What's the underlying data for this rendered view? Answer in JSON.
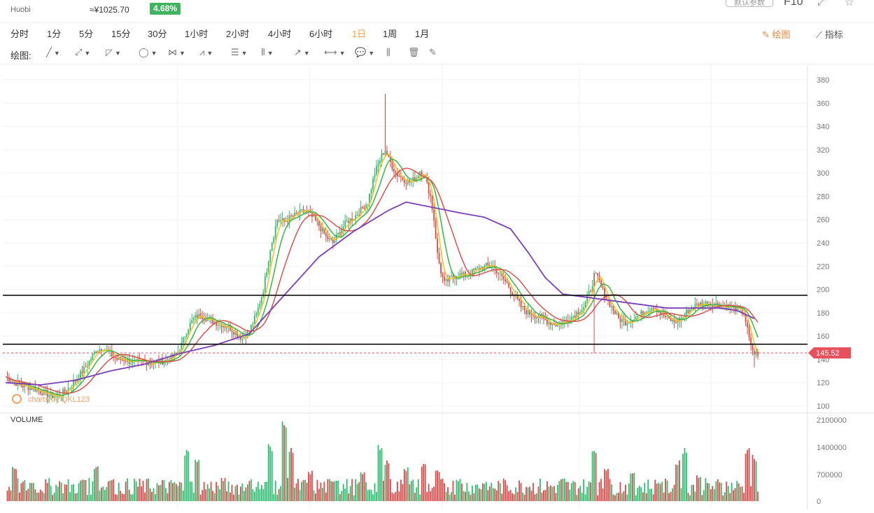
{
  "header": {
    "exchange": "Huobi",
    "price_cny": "≈¥1025.70",
    "change_pct": "4.68%",
    "param_button": "默认参数",
    "f10_label": "F10"
  },
  "timeframes": [
    "分时",
    "1分",
    "5分",
    "15分",
    "30分",
    "1小时",
    "2小时",
    "4小时",
    "6小时",
    "1日",
    "1周",
    "1月"
  ],
  "active_timeframe": "1日",
  "right_buttons": {
    "draw": "绘图",
    "indicator": "指标"
  },
  "draw_tools": {
    "label": "绘图:",
    "tools": [
      {
        "name": "line-tool",
        "glyph": "╱",
        "caret": true
      },
      {
        "name": "ray-tool",
        "glyph": "⤢",
        "caret": true
      },
      {
        "name": "channel-tool",
        "glyph": "◸",
        "caret": true
      },
      {
        "name": "shape-tool",
        "glyph": "◯",
        "caret": true
      },
      {
        "name": "pattern-tool",
        "glyph": "⋈",
        "caret": true
      },
      {
        "name": "wave-tool",
        "glyph": "⩘",
        "caret": true
      },
      {
        "name": "fib-tool",
        "glyph": "☰",
        "caret": true
      },
      {
        "name": "gann-tool",
        "glyph": "⦀",
        "caret": true
      },
      {
        "name": "arrow-tool",
        "glyph": "↗",
        "caret": true
      },
      {
        "name": "measure-tool",
        "glyph": "⟷",
        "caret": true
      },
      {
        "name": "comment-tool",
        "glyph": "💬",
        "caret": true
      },
      {
        "name": "candle-tool",
        "glyph": "⫼",
        "caret": false
      },
      {
        "name": "trash-tool",
        "glyph": "🗑",
        "caret": false
      },
      {
        "name": "brush-tool",
        "glyph": "✎",
        "caret": false
      }
    ]
  },
  "chart_data": {
    "type": "candlestick",
    "price_axis": {
      "ticks": [
        380,
        360,
        340,
        320,
        300,
        280,
        260,
        240,
        220,
        200,
        180,
        160,
        140,
        120,
        100
      ]
    },
    "volume_axis": {
      "label": "VOLUME",
      "ticks": [
        "2100000",
        "1400000",
        "700000",
        "0"
      ]
    },
    "last_price": "145.52",
    "horizontal_lines": [
      195,
      153
    ],
    "watermark": "charts by QKL123",
    "colors": {
      "up": "#2dbd6e",
      "down": "#e04848",
      "ma5": "#f2c21b",
      "ma10": "#3ab54a",
      "ma20": "#d9534f",
      "ma60": "#7b3fb8",
      "last_price": "#e8505b"
    },
    "close_path": [
      [
        0,
        125
      ],
      [
        8,
        118
      ],
      [
        16,
        115
      ],
      [
        24,
        110
      ],
      [
        30,
        108
      ],
      [
        36,
        115
      ],
      [
        42,
        125
      ],
      [
        48,
        138
      ],
      [
        52,
        148
      ],
      [
        56,
        150
      ],
      [
        60,
        145
      ],
      [
        64,
        140
      ],
      [
        68,
        140
      ],
      [
        72,
        138
      ],
      [
        76,
        137
      ],
      [
        80,
        138
      ],
      [
        84,
        137
      ],
      [
        88,
        138
      ],
      [
        92,
        139
      ],
      [
        96,
        142
      ],
      [
        100,
        148
      ],
      [
        104,
        165
      ],
      [
        108,
        175
      ],
      [
        112,
        178
      ],
      [
        116,
        175
      ],
      [
        120,
        172
      ],
      [
        124,
        170
      ],
      [
        128,
        168
      ],
      [
        132,
        163
      ],
      [
        136,
        158
      ],
      [
        140,
        165
      ],
      [
        144,
        178
      ],
      [
        148,
        200
      ],
      [
        152,
        235
      ],
      [
        156,
        260
      ],
      [
        160,
        258
      ],
      [
        164,
        262
      ],
      [
        168,
        265
      ],
      [
        172,
        268
      ],
      [
        176,
        262
      ],
      [
        180,
        255
      ],
      [
        184,
        245
      ],
      [
        188,
        240
      ],
      [
        192,
        250
      ],
      [
        196,
        258
      ],
      [
        200,
        262
      ],
      [
        204,
        268
      ],
      [
        208,
        275
      ],
      [
        212,
        300
      ],
      [
        216,
        315
      ],
      [
        218,
        320
      ],
      [
        220,
        312
      ],
      [
        224,
        300
      ],
      [
        228,
        295
      ],
      [
        232,
        292
      ],
      [
        236,
        296
      ],
      [
        238,
        302
      ],
      [
        240,
        300
      ],
      [
        244,
        280
      ],
      [
        246,
        260
      ],
      [
        248,
        230
      ],
      [
        250,
        215
      ],
      [
        252,
        205
      ],
      [
        256,
        210
      ],
      [
        260,
        213
      ],
      [
        264,
        212
      ],
      [
        268,
        215
      ],
      [
        272,
        218
      ],
      [
        276,
        220
      ],
      [
        280,
        220
      ],
      [
        284,
        212
      ],
      [
        288,
        205
      ],
      [
        292,
        195
      ],
      [
        296,
        185
      ],
      [
        300,
        180
      ],
      [
        304,
        178
      ],
      [
        308,
        175
      ],
      [
        312,
        172
      ],
      [
        316,
        170
      ],
      [
        320,
        172
      ],
      [
        324,
        175
      ],
      [
        328,
        180
      ],
      [
        332,
        185
      ],
      [
        336,
        200
      ],
      [
        338,
        212
      ],
      [
        340,
        210
      ],
      [
        344,
        195
      ],
      [
        348,
        185
      ],
      [
        352,
        175
      ],
      [
        356,
        172
      ],
      [
        360,
        175
      ],
      [
        364,
        178
      ],
      [
        368,
        182
      ],
      [
        372,
        186
      ],
      [
        376,
        180
      ],
      [
        380,
        175
      ],
      [
        384,
        172
      ],
      [
        388,
        175
      ],
      [
        392,
        182
      ],
      [
        396,
        186
      ],
      [
        400,
        188
      ],
      [
        404,
        188
      ],
      [
        408,
        187
      ],
      [
        412,
        186
      ],
      [
        416,
        185
      ],
      [
        420,
        183
      ],
      [
        424,
        180
      ],
      [
        426,
        165
      ],
      [
        428,
        150
      ],
      [
        430,
        145
      ]
    ],
    "ma60_path": [
      [
        0,
        120
      ],
      [
        20,
        118
      ],
      [
        40,
        122
      ],
      [
        60,
        130
      ],
      [
        80,
        136
      ],
      [
        100,
        145
      ],
      [
        120,
        152
      ],
      [
        140,
        162
      ],
      [
        160,
        195
      ],
      [
        180,
        228
      ],
      [
        200,
        250
      ],
      [
        220,
        268
      ],
      [
        230,
        275
      ],
      [
        240,
        272
      ],
      [
        260,
        266
      ],
      [
        275,
        262
      ],
      [
        290,
        252
      ],
      [
        300,
        232
      ],
      [
        310,
        210
      ],
      [
        320,
        196
      ],
      [
        335,
        193
      ],
      [
        350,
        190
      ],
      [
        365,
        187
      ],
      [
        380,
        184
      ],
      [
        395,
        184
      ],
      [
        410,
        184
      ],
      [
        420,
        182
      ],
      [
        430,
        175
      ]
    ],
    "volumes": [
      {
        "t": 5,
        "v": 900000.0
      },
      {
        "t": 15,
        "v": 500000.0
      },
      {
        "t": 30,
        "v": 400000.0
      },
      {
        "t": 45,
        "v": 600000.0
      },
      {
        "t": 52,
        "v": 950000.0
      },
      {
        "t": 60,
        "v": 600000.0
      },
      {
        "t": 75,
        "v": 400000.0
      },
      {
        "t": 95,
        "v": 500000.0
      },
      {
        "t": 104,
        "v": 1350000.0
      },
      {
        "t": 110,
        "v": 1100000.0
      },
      {
        "t": 125,
        "v": 600000.0
      },
      {
        "t": 140,
        "v": 500000.0
      },
      {
        "t": 152,
        "v": 1500000.0
      },
      {
        "t": 160,
        "v": 2100000.0
      },
      {
        "t": 164,
        "v": 1400000.0
      },
      {
        "t": 175,
        "v": 800000.0
      },
      {
        "t": 190,
        "v": 600000.0
      },
      {
        "t": 205,
        "v": 800000.0
      },
      {
        "t": 215,
        "v": 1450000.0
      },
      {
        "t": 219,
        "v": 1100000.0
      },
      {
        "t": 230,
        "v": 900000.0
      },
      {
        "t": 240,
        "v": 1000000.0
      },
      {
        "t": 248,
        "v": 800000.0
      },
      {
        "t": 260,
        "v": 600000.0
      },
      {
        "t": 275,
        "v": 500000.0
      },
      {
        "t": 300,
        "v": 400000.0
      },
      {
        "t": 320,
        "v": 600000.0
      },
      {
        "t": 338,
        "v": 1400000.0
      },
      {
        "t": 345,
        "v": 900000.0
      },
      {
        "t": 360,
        "v": 800000.0
      },
      {
        "t": 376,
        "v": 500000.0
      },
      {
        "t": 386,
        "v": 1100000.0
      },
      {
        "t": 390,
        "v": 1400000.0
      },
      {
        "t": 398,
        "v": 700000.0
      },
      {
        "t": 410,
        "v": 500000.0
      },
      {
        "t": 426,
        "v": 1400000.0
      },
      {
        "t": 430,
        "v": 1200000.0
      }
    ]
  }
}
